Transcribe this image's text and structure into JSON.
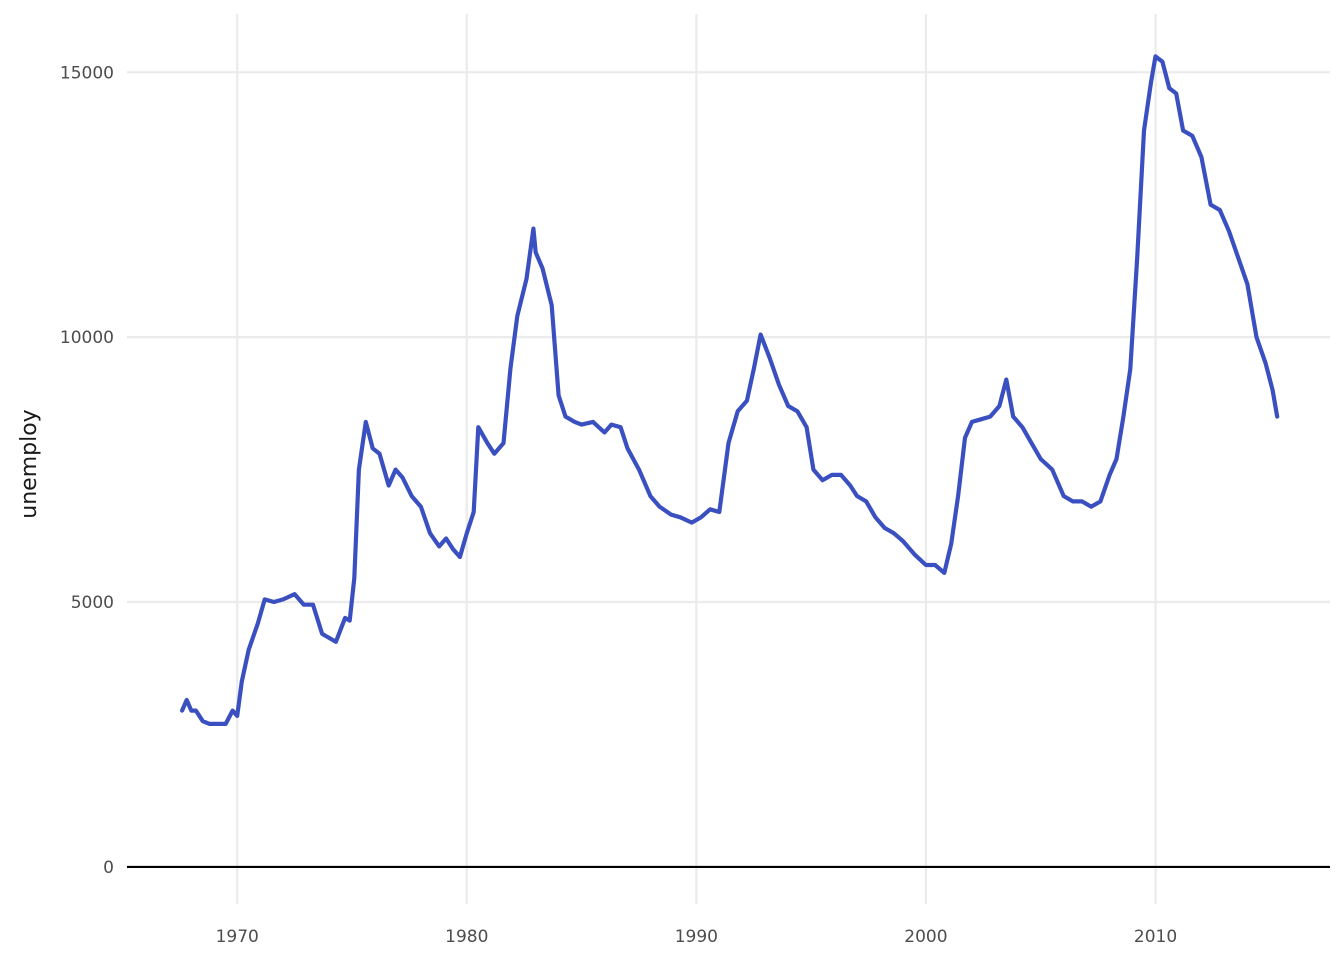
{
  "chart_data": {
    "type": "line",
    "title": "",
    "xlabel": "",
    "ylabel": "unemploy",
    "xlim": [
      1965.2,
      2017.6
    ],
    "ylim": [
      -700,
      16100
    ],
    "x_ticks": [
      1970,
      1980,
      1990,
      2000,
      2010
    ],
    "y_ticks": [
      0,
      5000,
      10000,
      15000
    ],
    "x_tick_labels": [
      "1970",
      "1980",
      "1990",
      "2000",
      "2010"
    ],
    "y_tick_labels": [
      "0",
      "5000",
      "10000",
      "15000"
    ],
    "grid": true,
    "baseline": 0,
    "line_color": "#3b50c0",
    "series": [
      {
        "x": [
          1967.6,
          1967.8,
          1968.0,
          1968.2,
          1968.5,
          1968.8,
          1969.0,
          1969.5,
          1969.8,
          1970.0,
          1970.2,
          1970.5,
          1970.9,
          1971.2,
          1971.6,
          1972.0,
          1972.5,
          1972.9,
          1973.3,
          1973.7,
          1973.9,
          1974.3,
          1974.7,
          1974.9,
          1975.1,
          1975.3,
          1975.6,
          1975.9,
          1976.2,
          1976.6,
          1976.9,
          1977.2,
          1977.6,
          1978.0,
          1978.4,
          1978.8,
          1979.1,
          1979.4,
          1979.7,
          1980.0,
          1980.3,
          1980.5,
          1980.9,
          1981.2,
          1981.6,
          1981.9,
          1982.2,
          1982.6,
          1982.9,
          1983.0,
          1983.3,
          1983.7,
          1984.0,
          1984.3,
          1984.7,
          1985.0,
          1985.5,
          1986.0,
          1986.3,
          1986.7,
          1987.0,
          1987.5,
          1988.0,
          1988.4,
          1988.9,
          1989.3,
          1989.8,
          1990.2,
          1990.6,
          1991.0,
          1991.4,
          1991.8,
          1992.2,
          1992.5,
          1992.8,
          1993.2,
          1993.6,
          1994.0,
          1994.4,
          1994.8,
          1995.1,
          1995.5,
          1995.9,
          1996.3,
          1996.7,
          1997.0,
          1997.4,
          1997.8,
          1998.2,
          1998.6,
          1999.0,
          1999.5,
          2000.0,
          2000.4,
          2000.8,
          2001.1,
          2001.4,
          2001.7,
          2002.0,
          2002.4,
          2002.8,
          2003.2,
          2003.5,
          2003.8,
          2004.2,
          2004.6,
          2005.0,
          2005.5,
          2006.0,
          2006.4,
          2006.8,
          2007.2,
          2007.6,
          2008.0,
          2008.3,
          2008.6,
          2008.9,
          2009.2,
          2009.5,
          2009.8,
          2010.0,
          2010.3,
          2010.6,
          2010.9,
          2011.2,
          2011.6,
          2012.0,
          2012.4,
          2012.8,
          2013.2,
          2013.6,
          2014.0,
          2014.4,
          2014.8,
          2015.1,
          2015.3
        ],
        "values": [
          2950,
          3150,
          2950,
          2950,
          2750,
          2700,
          2700,
          2700,
          2950,
          2850,
          3500,
          4100,
          4600,
          5050,
          5000,
          5050,
          5150,
          4950,
          4950,
          4400,
          4350,
          4250,
          4700,
          4650,
          5450,
          7500,
          8400,
          7900,
          7800,
          7200,
          7500,
          7350,
          7000,
          6800,
          6300,
          6050,
          6200,
          6000,
          5850,
          6300,
          6700,
          8300,
          8000,
          7800,
          8000,
          9400,
          10400,
          11100,
          12050,
          11600,
          11300,
          10600,
          8900,
          8500,
          8400,
          8350,
          8400,
          8200,
          8350,
          8300,
          7900,
          7500,
          7000,
          6800,
          6650,
          6600,
          6500,
          6600,
          6750,
          6700,
          8000,
          8600,
          8800,
          9400,
          10050,
          9600,
          9100,
          8700,
          8600,
          8300,
          7500,
          7300,
          7400,
          7400,
          7200,
          7000,
          6900,
          6600,
          6400,
          6300,
          6150,
          5900,
          5700,
          5700,
          5550,
          6100,
          7000,
          8100,
          8400,
          8450,
          8500,
          8700,
          9200,
          8500,
          8300,
          8000,
          7700,
          7500,
          7000,
          6900,
          6900,
          6800,
          6900,
          7400,
          7700,
          8500,
          9400,
          11500,
          13900,
          14800,
          15300,
          15200,
          14700,
          14600,
          13900,
          13800,
          13400,
          12500,
          12400,
          12000,
          11500,
          11000,
          10000,
          9500,
          9000,
          8500
        ]
      }
    ]
  }
}
